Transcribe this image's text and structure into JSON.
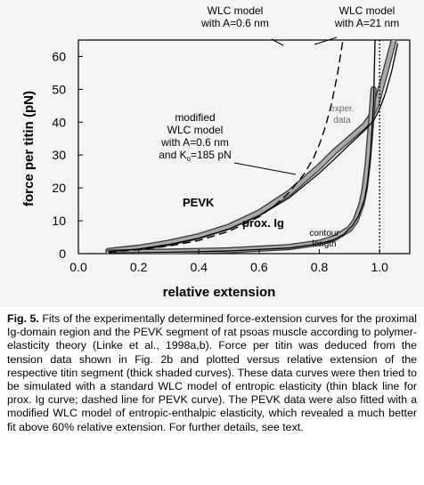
{
  "figure": {
    "caption_label": "Fig. 5.",
    "caption_text": " Fits of the experimentally determined force-extension curves for the proximal Ig-domain region and the PEVK segment of rat psoas muscle according to polymer-elasticity theory (Linke et al., 1998a,b). Force per titin was deduced from the tension data shown in Fig. 2b and plotted versus relative extension of the respective titin segment (thick shaded curves). These data curves were then tried to be simulated with a standard WLC model of entropic elasticity (thin black line for prox. Ig curve; dashed line for PEVK curve). The PEVK data were also fitted with a modified WLC model of entropic-enthalpic elasticity, which revealed a much better fit above 60% relative extension. For further details, see text."
  },
  "chart_data": {
    "type": "line",
    "xlabel": "relative extension",
    "ylabel": "force per titin (pN)",
    "xlim": [
      0.0,
      1.1
    ],
    "ylim": [
      0,
      65
    ],
    "xticks": [
      "0.0",
      "0.2",
      "0.4",
      "0.6",
      "0.8",
      "1.0"
    ],
    "yticks": [
      "0",
      "10",
      "20",
      "30",
      "40",
      "50",
      "60"
    ],
    "grid": false,
    "series": [
      {
        "name": "PEVK",
        "style": "thick shaded",
        "x": [
          0.1,
          0.2,
          0.3,
          0.4,
          0.5,
          0.6,
          0.7,
          0.8,
          0.85,
          0.9,
          0.95,
          0.97,
          0.99,
          1.0,
          1.02,
          1.05
        ],
        "y": [
          0.8,
          1.8,
          3.3,
          5.3,
          8.2,
          12.5,
          18.5,
          26.5,
          31.0,
          35.0,
          39.0,
          41.5,
          45.5,
          49.0,
          55.5,
          66.0
        ]
      },
      {
        "name": "prox. Ig",
        "style": "thick shaded",
        "x": [
          0.1,
          0.3,
          0.5,
          0.7,
          0.8,
          0.85,
          0.9,
          0.92,
          0.94,
          0.95,
          0.96,
          0.97,
          0.98
        ],
        "y": [
          0.3,
          0.6,
          1.0,
          2.0,
          3.3,
          4.7,
          7.5,
          10.0,
          15.0,
          19.5,
          27.0,
          38.0,
          50.0
        ]
      },
      {
        "name": "WLC model with A=0.6 nm",
        "style": "dashed",
        "x": [
          0.1,
          0.2,
          0.3,
          0.4,
          0.5,
          0.6,
          0.65,
          0.7,
          0.75,
          0.78,
          0.8,
          0.82,
          0.84,
          0.86,
          0.88
        ],
        "y": [
          0.5,
          1.2,
          2.3,
          4.0,
          6.8,
          11.2,
          14.5,
          18.6,
          24.3,
          29.0,
          33.2,
          38.6,
          45.5,
          54.5,
          66.0
        ]
      },
      {
        "name": "WLC model with A=21 nm",
        "style": "thin solid",
        "x": [
          0.1,
          0.3,
          0.5,
          0.7,
          0.8,
          0.85,
          0.88,
          0.91,
          0.93,
          0.95,
          0.96,
          0.97,
          0.98,
          0.985
        ],
        "y": [
          0.2,
          0.4,
          0.8,
          1.7,
          3.0,
          4.3,
          5.8,
          8.5,
          11.5,
          16.5,
          22.0,
          31.0,
          46.0,
          66.0
        ]
      },
      {
        "name": "modified WLC model with A=0.6 nm and K0=185 pN",
        "style": "thin solid",
        "x": [
          0.1,
          0.2,
          0.3,
          0.4,
          0.5,
          0.6,
          0.7,
          0.8,
          0.85,
          0.9,
          0.95,
          0.98,
          1.0,
          1.02,
          1.04,
          1.06
        ],
        "y": [
          0.6,
          1.4,
          2.8,
          4.7,
          7.5,
          11.5,
          17.0,
          24.5,
          28.8,
          33.2,
          37.5,
          40.5,
          44.0,
          49.0,
          55.5,
          64.0
        ]
      }
    ],
    "annotations": {
      "wlc_06_line1": "WLC model",
      "wlc_06_line2": "with A=0.6 nm",
      "wlc_21_line1": "WLC model",
      "wlc_21_line2": "with A=21 nm",
      "mod_line1": "modified",
      "mod_line2": "WLC model",
      "mod_line3": "with A=0.6 nm",
      "mod_line4_prefix": "and K",
      "mod_line4_sub": "o",
      "mod_line4_suffix": "=185 pN",
      "pevk": "PEVK",
      "prox_ig": "prox. Ig",
      "exper_line1": "exper.",
      "exper_line2": "data",
      "contour_line1": "contour",
      "contour_line2": "length"
    },
    "contour_length_x": 1.0
  }
}
